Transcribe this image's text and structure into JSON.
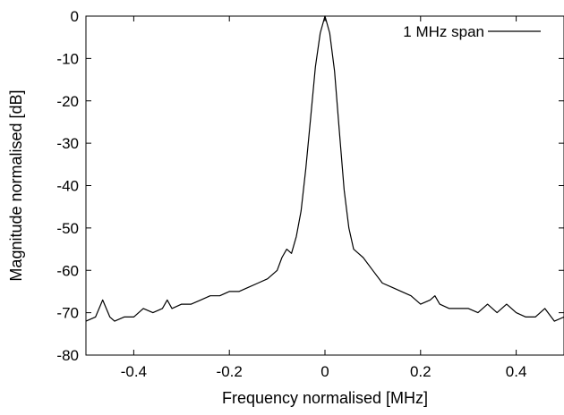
{
  "chart_data": {
    "type": "line",
    "title": "",
    "xlabel": "Frequency normalised [MHz]",
    "ylabel": "Magnitude normalised [dB]",
    "xlim": [
      -0.5,
      0.5
    ],
    "ylim": [
      -80,
      0
    ],
    "xticks": [
      -0.4,
      -0.2,
      0,
      0.2,
      0.4
    ],
    "xtick_labels": [
      "-0.4",
      "-0.2",
      "0",
      "0.2",
      "0.4"
    ],
    "yticks": [
      0,
      -10,
      -20,
      -30,
      -40,
      -50,
      -60,
      -70,
      -80
    ],
    "ytick_labels": [
      "0",
      "-10",
      "-20",
      "-30",
      "-40",
      "-50",
      "-60",
      "-70",
      "-80"
    ],
    "grid": false,
    "legend_position": "top-right",
    "series": [
      {
        "name": "1 MHz span",
        "color": "#000000",
        "x": [
          -0.5,
          -0.48,
          -0.465,
          -0.45,
          -0.44,
          -0.42,
          -0.4,
          -0.38,
          -0.36,
          -0.34,
          -0.33,
          -0.32,
          -0.3,
          -0.28,
          -0.26,
          -0.24,
          -0.22,
          -0.2,
          -0.18,
          -0.16,
          -0.14,
          -0.12,
          -0.1,
          -0.09,
          -0.08,
          -0.07,
          -0.06,
          -0.05,
          -0.04,
          -0.03,
          -0.02,
          -0.01,
          0,
          0.01,
          0.02,
          0.03,
          0.04,
          0.05,
          0.06,
          0.07,
          0.08,
          0.1,
          0.12,
          0.14,
          0.16,
          0.18,
          0.2,
          0.22,
          0.23,
          0.24,
          0.26,
          0.28,
          0.3,
          0.32,
          0.34,
          0.36,
          0.38,
          0.4,
          0.42,
          0.44,
          0.46,
          0.48,
          0.5
        ],
        "y": [
          -72,
          -71,
          -67,
          -71,
          -72,
          -71,
          -71,
          -69,
          -70,
          -69,
          -67,
          -69,
          -68,
          -68,
          -67,
          -66,
          -66,
          -65,
          -65,
          -64,
          -63,
          -62,
          -60,
          -57,
          -55,
          -56,
          -52,
          -46,
          -36,
          -24,
          -12,
          -4,
          0,
          -4,
          -13,
          -27,
          -41,
          -50,
          -55,
          -56,
          -57,
          -60,
          -63,
          -64,
          -65,
          -66,
          -68,
          -67,
          -66,
          -68,
          -69,
          -69,
          -69,
          -70,
          -68,
          -70,
          -68,
          -70,
          -71,
          -71,
          -69,
          -72,
          -71
        ]
      }
    ]
  }
}
